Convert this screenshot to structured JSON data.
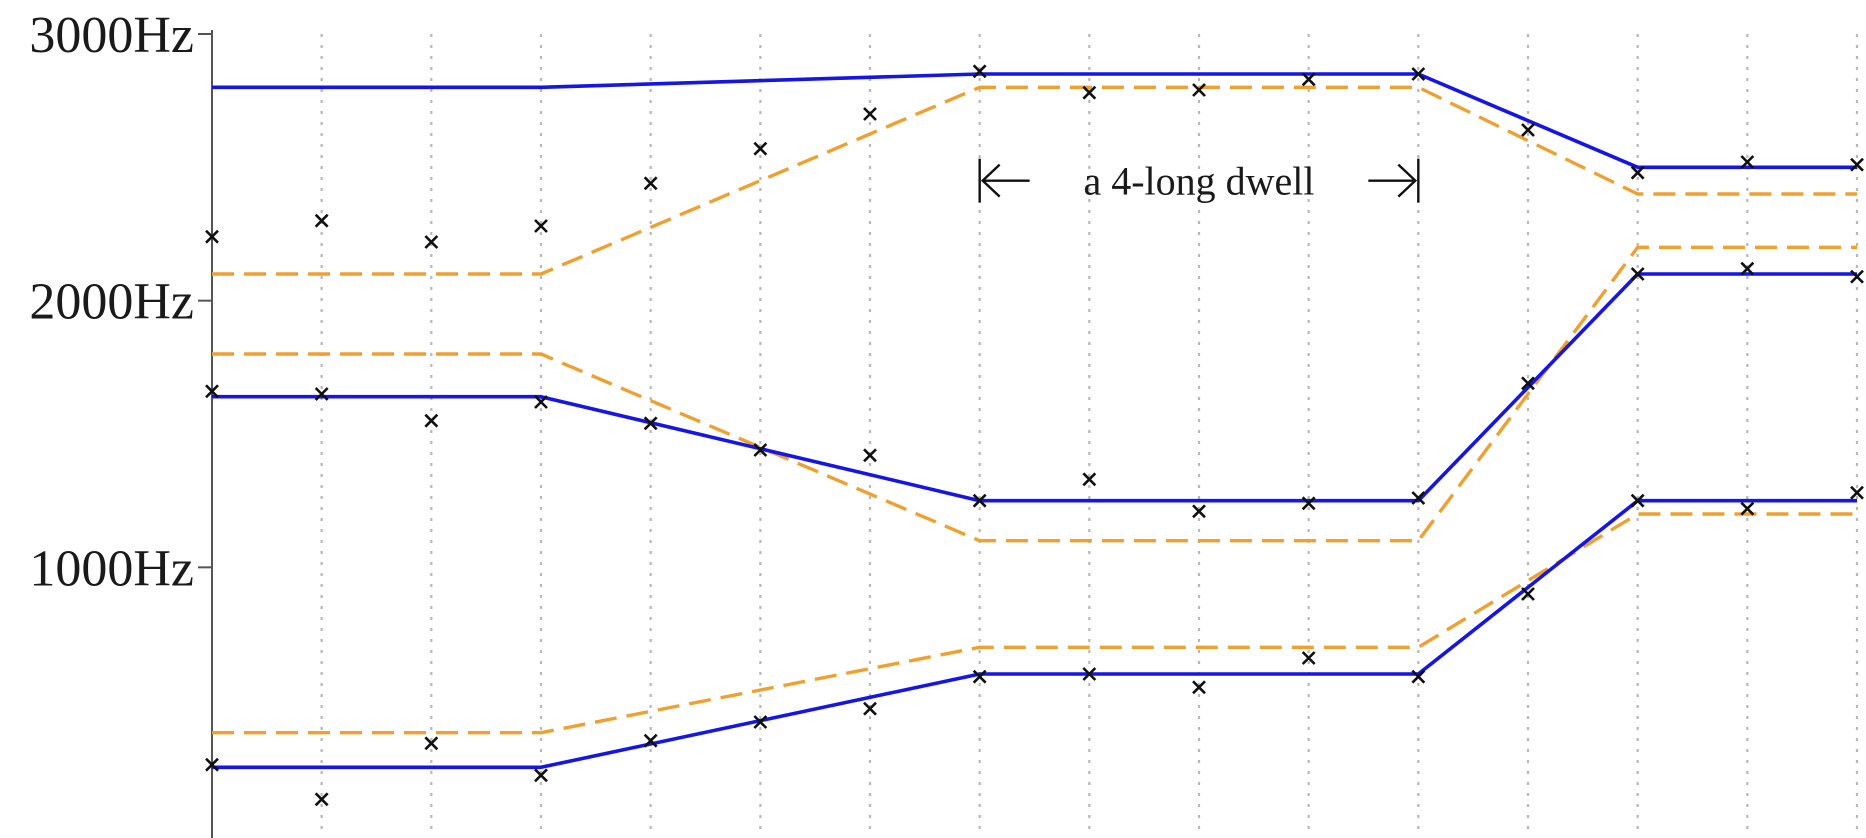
{
  "chart_data": {
    "type": "line",
    "title": "",
    "xlabel": "",
    "ylabel": "",
    "ylim": [
      0,
      3000
    ],
    "xlim": [
      0,
      15
    ],
    "grid": {
      "x": true,
      "y": false
    },
    "y_ticks": [
      {
        "value": 1000,
        "label": "1000Hz"
      },
      {
        "value": 2000,
        "label": "2000Hz"
      },
      {
        "value": 3000,
        "label": "3000Hz"
      }
    ],
    "x": [
      0,
      3,
      7,
      11,
      13,
      15
    ],
    "series": [
      {
        "style": "solid",
        "color": "#1515e6",
        "values": [
          2800,
          2800,
          2850,
          2850,
          2500,
          2500
        ]
      },
      {
        "style": "solid",
        "color": "#1515e6",
        "values": [
          1640,
          1640,
          1250,
          1250,
          2100,
          2100
        ]
      },
      {
        "style": "solid",
        "color": "#1515e6",
        "values": [
          250,
          250,
          600,
          600,
          1250,
          1250
        ]
      },
      {
        "style": "dashed",
        "color": "#f0a030",
        "values": [
          2100,
          2100,
          2800,
          2800,
          2400,
          2400
        ]
      },
      {
        "style": "dashed",
        "color": "#f0a030",
        "values": [
          1800,
          1800,
          1100,
          1100,
          2200,
          2200
        ]
      },
      {
        "style": "dashed",
        "color": "#f0a030",
        "values": [
          380,
          380,
          700,
          700,
          1200,
          1200
        ]
      }
    ],
    "observations": [
      {
        "x": 0,
        "values": [
          2240,
          1660,
          260
        ]
      },
      {
        "x": 1,
        "values": [
          2300,
          1650,
          130
        ]
      },
      {
        "x": 2,
        "values": [
          2220,
          1550,
          340
        ]
      },
      {
        "x": 3,
        "values": [
          2280,
          1620,
          220
        ]
      },
      {
        "x": 4,
        "values": [
          2440,
          1540,
          350
        ]
      },
      {
        "x": 5,
        "values": [
          2570,
          1440,
          420
        ]
      },
      {
        "x": 6,
        "values": [
          2700,
          1420,
          470
        ]
      },
      {
        "x": 7,
        "values": [
          2860,
          1250,
          590
        ]
      },
      {
        "x": 8,
        "values": [
          2780,
          1330,
          600
        ]
      },
      {
        "x": 9,
        "values": [
          2790,
          1210,
          550
        ]
      },
      {
        "x": 10,
        "values": [
          2830,
          1240,
          660
        ]
      },
      {
        "x": 11,
        "values": [
          2850,
          1260,
          590
        ]
      },
      {
        "x": 12,
        "values": [
          2640,
          1690,
          900
        ]
      },
      {
        "x": 13,
        "values": [
          2480,
          2100,
          1250
        ]
      },
      {
        "x": 14,
        "values": [
          2520,
          2120,
          1220
        ]
      },
      {
        "x": 15,
        "values": [
          2510,
          2090,
          1280
        ]
      }
    ],
    "annotation": {
      "text": "a 4-long dwell",
      "x_start": 7,
      "x_end": 11,
      "y": 2450
    }
  }
}
